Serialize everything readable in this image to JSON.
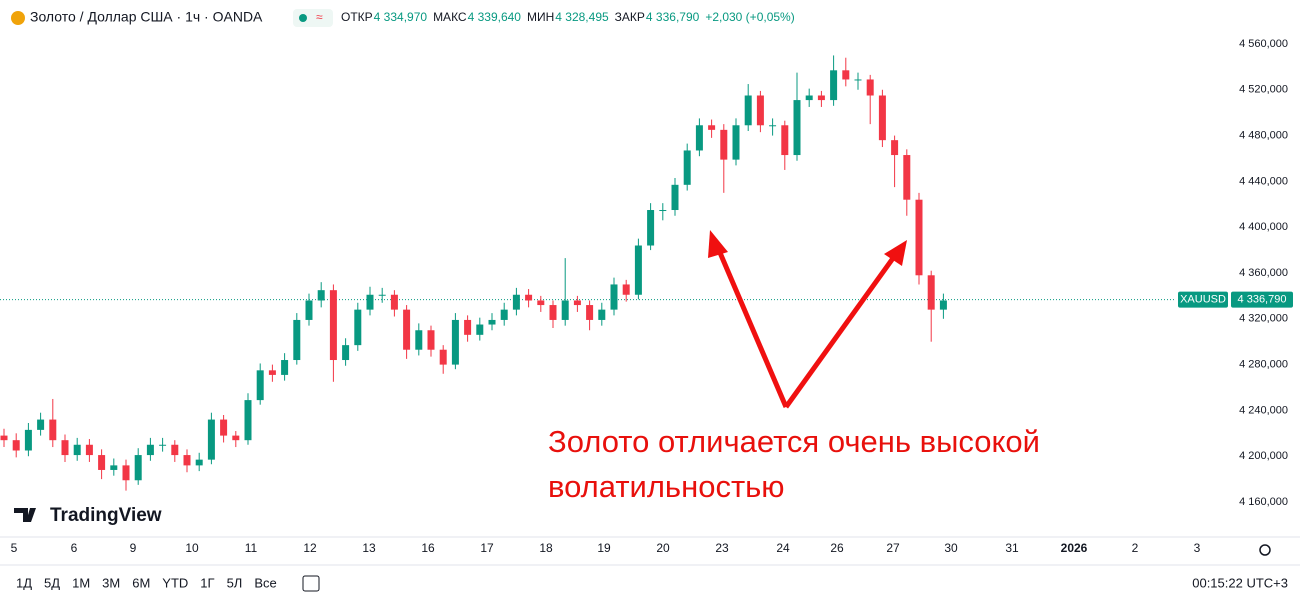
{
  "header": {
    "symbol": "Золото / Доллар США · 1ч · OANDA",
    "stats": [
      {
        "label": "ОТКР",
        "value": "4 334,970"
      },
      {
        "label": "МАКС",
        "value": "4 339,640"
      },
      {
        "label": "МИН",
        "value": "4 328,495"
      },
      {
        "label": "ЗАКР",
        "value": "4 336,790"
      }
    ],
    "change": "+2,030 (+0,05%)"
  },
  "logo": "TradingView",
  "chart_data": {
    "type": "candlestick",
    "categories": [
      "5",
      "6",
      "9",
      "10",
      "11",
      "12",
      "13",
      "16",
      "17",
      "18",
      "19",
      "20",
      "23",
      "24",
      "26",
      "27",
      "30",
      "31",
      "2026",
      "2",
      "3"
    ],
    "open": [
      4218,
      4214,
      4205,
      4223,
      4232,
      4214,
      4201,
      4210,
      4201,
      4188,
      4192,
      4179,
      4201,
      4210,
      4210,
      4201,
      4192,
      4197,
      4232,
      4218,
      4214,
      4249,
      4275,
      4271,
      4284,
      4319,
      4336,
      4345,
      4284,
      4297,
      4328,
      4341,
      4341,
      4328,
      4293,
      4310,
      4293,
      4280,
      4319,
      4306,
      4315,
      4319,
      4328,
      4341,
      4336,
      4332,
      4319,
      4336,
      4332,
      4319,
      4328,
      4350,
      4341,
      4384,
      4415,
      4415,
      4437,
      4467,
      4489,
      4485,
      4459,
      4489,
      4515,
      4489,
      4489,
      4463,
      4511,
      4515,
      4511,
      4537,
      4529,
      4529,
      4515,
      4476,
      4463,
      4424,
      4358,
      4328
    ],
    "high": [
      4224,
      4220,
      4229,
      4238,
      4250,
      4219,
      4216,
      4215,
      4206,
      4198,
      4197,
      4207,
      4216,
      4216,
      4214,
      4206,
      4203,
      4238,
      4236,
      4222,
      4255,
      4281,
      4280,
      4290,
      4325,
      4342,
      4352,
      4350,
      4303,
      4334,
      4348,
      4347,
      4345,
      4332,
      4316,
      4314,
      4297,
      4325,
      4323,
      4321,
      4325,
      4334,
      4347,
      4346,
      4340,
      4336,
      4373,
      4340,
      4336,
      4334,
      4356,
      4354,
      4390,
      4421,
      4421,
      4443,
      4473,
      4495,
      4494,
      4490,
      4495,
      4525,
      4519,
      4495,
      4493,
      4535,
      4521,
      4519,
      4550,
      4548,
      4535,
      4533,
      4520,
      4480,
      4468,
      4430,
      4362,
      4342
    ],
    "low": [
      4208,
      4199,
      4200,
      4218,
      4208,
      4195,
      4196,
      4195,
      4180,
      4183,
      4170,
      4175,
      4196,
      4204,
      4195,
      4186,
      4187,
      4193,
      4212,
      4208,
      4210,
      4245,
      4265,
      4266,
      4280,
      4314,
      4330,
      4265,
      4279,
      4292,
      4323,
      4334,
      4322,
      4285,
      4288,
      4287,
      4272,
      4276,
      4300,
      4301,
      4310,
      4314,
      4323,
      4330,
      4326,
      4312,
      4314,
      4326,
      4310,
      4314,
      4323,
      4335,
      4337,
      4380,
      4406,
      4410,
      4432,
      4462,
      4478,
      4430,
      4454,
      4484,
      4483,
      4480,
      4450,
      4458,
      4505,
      4505,
      4506,
      4523,
      4520,
      4490,
      4470,
      4435,
      4410,
      4350,
      4300,
      4320
    ],
    "close": [
      4214,
      4205,
      4223,
      4232,
      4214,
      4201,
      4210,
      4201,
      4188,
      4192,
      4179,
      4201,
      4210,
      4210,
      4201,
      4192,
      4197,
      4232,
      4218,
      4214,
      4249,
      4275,
      4271,
      4284,
      4319,
      4336,
      4345,
      4284,
      4297,
      4328,
      4341,
      4341,
      4328,
      4293,
      4310,
      4293,
      4280,
      4319,
      4306,
      4315,
      4319,
      4328,
      4341,
      4336,
      4332,
      4319,
      4336,
      4332,
      4319,
      4328,
      4350,
      4341,
      4384,
      4415,
      4415,
      4437,
      4467,
      4489,
      4485,
      4459,
      4489,
      4515,
      4489,
      4489,
      4463,
      4511,
      4515,
      4511,
      4537,
      4529,
      4529,
      4515,
      4476,
      4463,
      4424,
      4358,
      4328,
      4336
    ],
    "up_color": "#089981",
    "down_color": "#f23645",
    "ylim": [
      4131.2,
      4572.2
    ],
    "yticks": [
      {
        "value": 4160,
        "label": "4 160,000"
      },
      {
        "value": 4200,
        "label": "4 200,000"
      },
      {
        "value": 4240,
        "label": "4 240,000"
      },
      {
        "value": 4280,
        "label": "4 280,000"
      },
      {
        "value": 4320,
        "label": "4 320,000"
      },
      {
        "value": 4360,
        "label": "4 360,000"
      },
      {
        "value": 4400,
        "label": "4 400,000"
      },
      {
        "value": 4440,
        "label": "4 440,000"
      },
      {
        "value": 4480,
        "label": "4 480,000"
      },
      {
        "value": 4520,
        "label": "4 520,000"
      },
      {
        "value": 4560,
        "label": "4 560,000"
      }
    ],
    "last_price": {
      "symbol": "XAUUSD",
      "value": 4336.79,
      "label": "4 336,790"
    },
    "annotation": [
      "Золото отличается очень высокой",
      "волатильностью"
    ]
  },
  "toolbar": {
    "ranges": [
      "1Д",
      "5Д",
      "1М",
      "3М",
      "6М",
      "YTD",
      "1Г",
      "5Л",
      "Все"
    ],
    "clock": "00:15:22 UTC+3"
  }
}
